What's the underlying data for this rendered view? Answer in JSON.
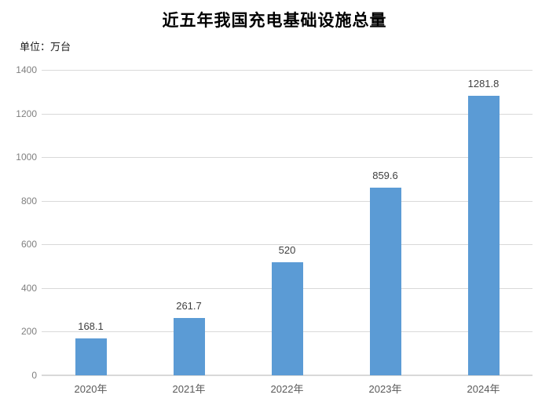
{
  "header": {
    "title": "近五年我国充电基础设施总量",
    "unit_label": "单位：万台"
  },
  "chart_data": {
    "type": "bar",
    "title": "近五年我国充电基础设施总量",
    "unit": "万台",
    "categories": [
      "2020年",
      "2021年",
      "2022年",
      "2023年",
      "2024年"
    ],
    "values": [
      168.1,
      261.7,
      520,
      859.6,
      1281.8
    ],
    "value_labels": [
      "168.1",
      "261.7",
      "520",
      "859.6",
      "1281.8"
    ],
    "ylim": [
      0,
      1400
    ],
    "ytick_step": 200,
    "yticks": [
      0,
      200,
      400,
      600,
      800,
      1000,
      1200,
      1400
    ],
    "grid": true,
    "legend_position": "none",
    "xlabel": "",
    "ylabel": "",
    "colors": {
      "bar": "#5B9BD5",
      "gridline": "#D9D9D9",
      "ytick_label": "#7F7F7F",
      "xtick_label": "#595959",
      "value_label": "#404040",
      "title": "#000000"
    }
  }
}
